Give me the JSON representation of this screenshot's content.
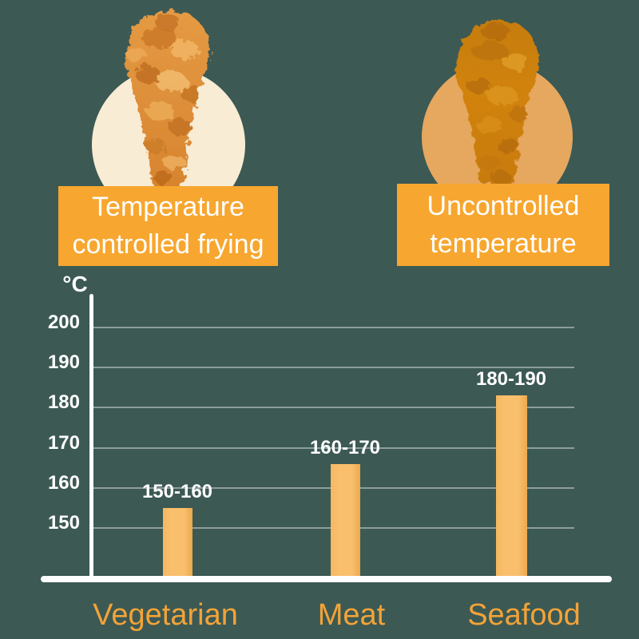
{
  "comparison": {
    "left": {
      "line1": "Temperature",
      "line2": "controlled frying",
      "image": "golden-fried-chicken-drumstick"
    },
    "right": {
      "line1": "Uncontrolled",
      "line2": "temperature",
      "image": "overfried-chicken-drumstick"
    }
  },
  "chart_data": {
    "type": "bar",
    "title": "",
    "xlabel": "",
    "ylabel": "°C",
    "categories": [
      "Vegetarian",
      "Meat",
      "Seafood"
    ],
    "values": [
      155,
      166,
      183
    ],
    "bar_labels": [
      "150-160",
      "160-170",
      "180-190"
    ],
    "y_ticks": [
      200,
      190,
      180,
      170,
      160,
      150
    ],
    "ylim": [
      150,
      200
    ],
    "grid": true,
    "legend": false
  },
  "colors": {
    "background": "#3C5954",
    "caption_box": "#F7A62F",
    "caption_text": "#FFFFFF",
    "bar_fill": "#F9BF6C",
    "axis": "#FFFFFF",
    "gridline": "rgba(255,255,255,0.42)",
    "tick_text": "#FFFFFF",
    "value_label_text": "#FFFFFF",
    "category_text": "#F2A338",
    "left_circle": "#F8ECD4",
    "right_circle": "#E6A75F"
  }
}
